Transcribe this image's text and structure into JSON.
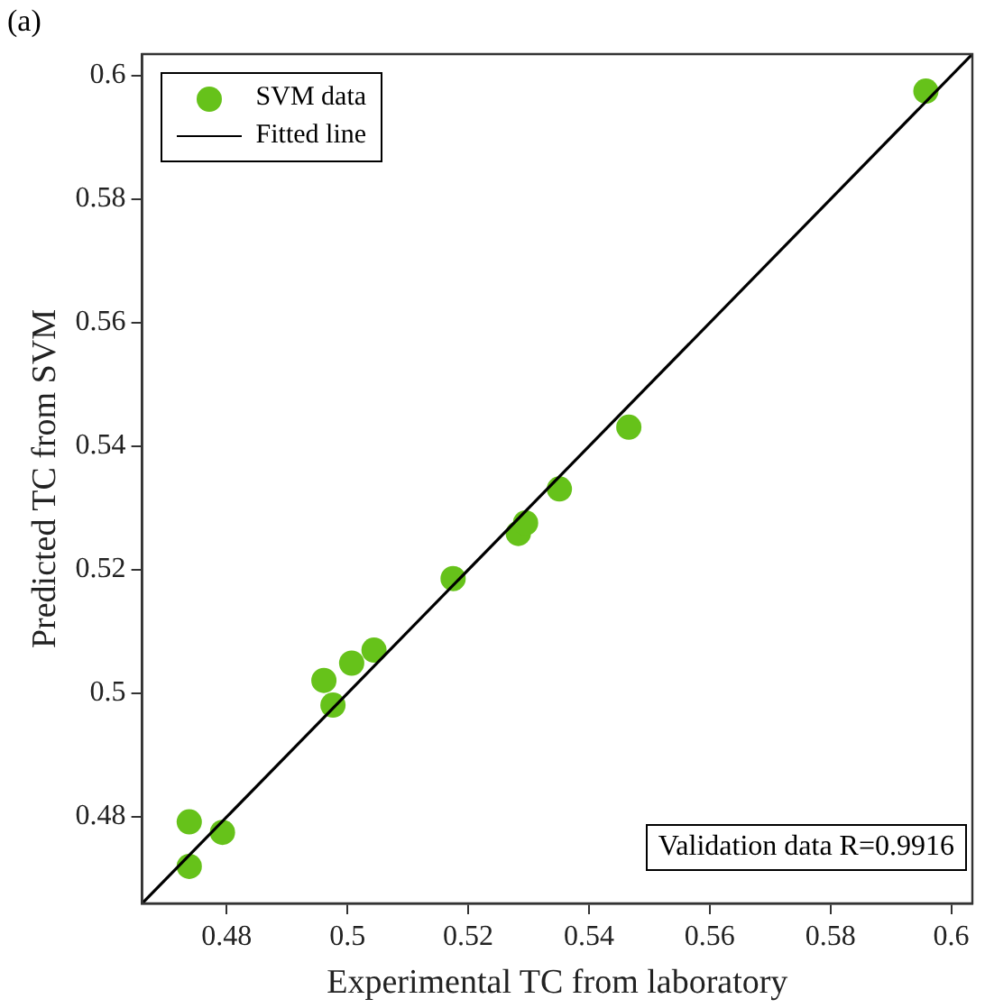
{
  "chart_data": {
    "type": "scatter",
    "xlabel": "Experimental TC from laboratory",
    "ylabel": "Predicted TC from SVM",
    "annotations": [
      "(a)",
      "Validation data R=0.9916"
    ],
    "series": [
      {
        "name": "SVM data",
        "color": "#66c21a",
        "marker": "circle",
        "x": [
          0.4738,
          0.4738,
          0.4793,
          0.4961,
          0.4976,
          0.5007,
          0.5044,
          0.5175,
          0.5283,
          0.5295,
          0.5351,
          0.5466,
          0.5958
        ],
        "values": [
          0.4792,
          0.472,
          0.4775,
          0.5021,
          0.4981,
          0.5049,
          0.507,
          0.5186,
          0.5259,
          0.5276,
          0.5331,
          0.5431,
          0.5975
        ]
      },
      {
        "name": "Fitted line",
        "type": "line",
        "color": "#000000",
        "marker": "none",
        "line_style": "solid",
        "x": [
          0.466,
          0.6035
        ],
        "values": [
          0.466,
          0.6035
        ]
      }
    ],
    "xlim": [
      0.466,
      0.6035
    ],
    "ylim": [
      0.466,
      0.6035
    ],
    "xticks": [
      0.48,
      0.5,
      0.52,
      0.54,
      0.56,
      0.58,
      0.6
    ],
    "yticks": [
      0.48,
      0.5,
      0.52,
      0.54,
      0.56,
      0.58,
      0.6
    ],
    "grid": false,
    "legend": "top left"
  }
}
